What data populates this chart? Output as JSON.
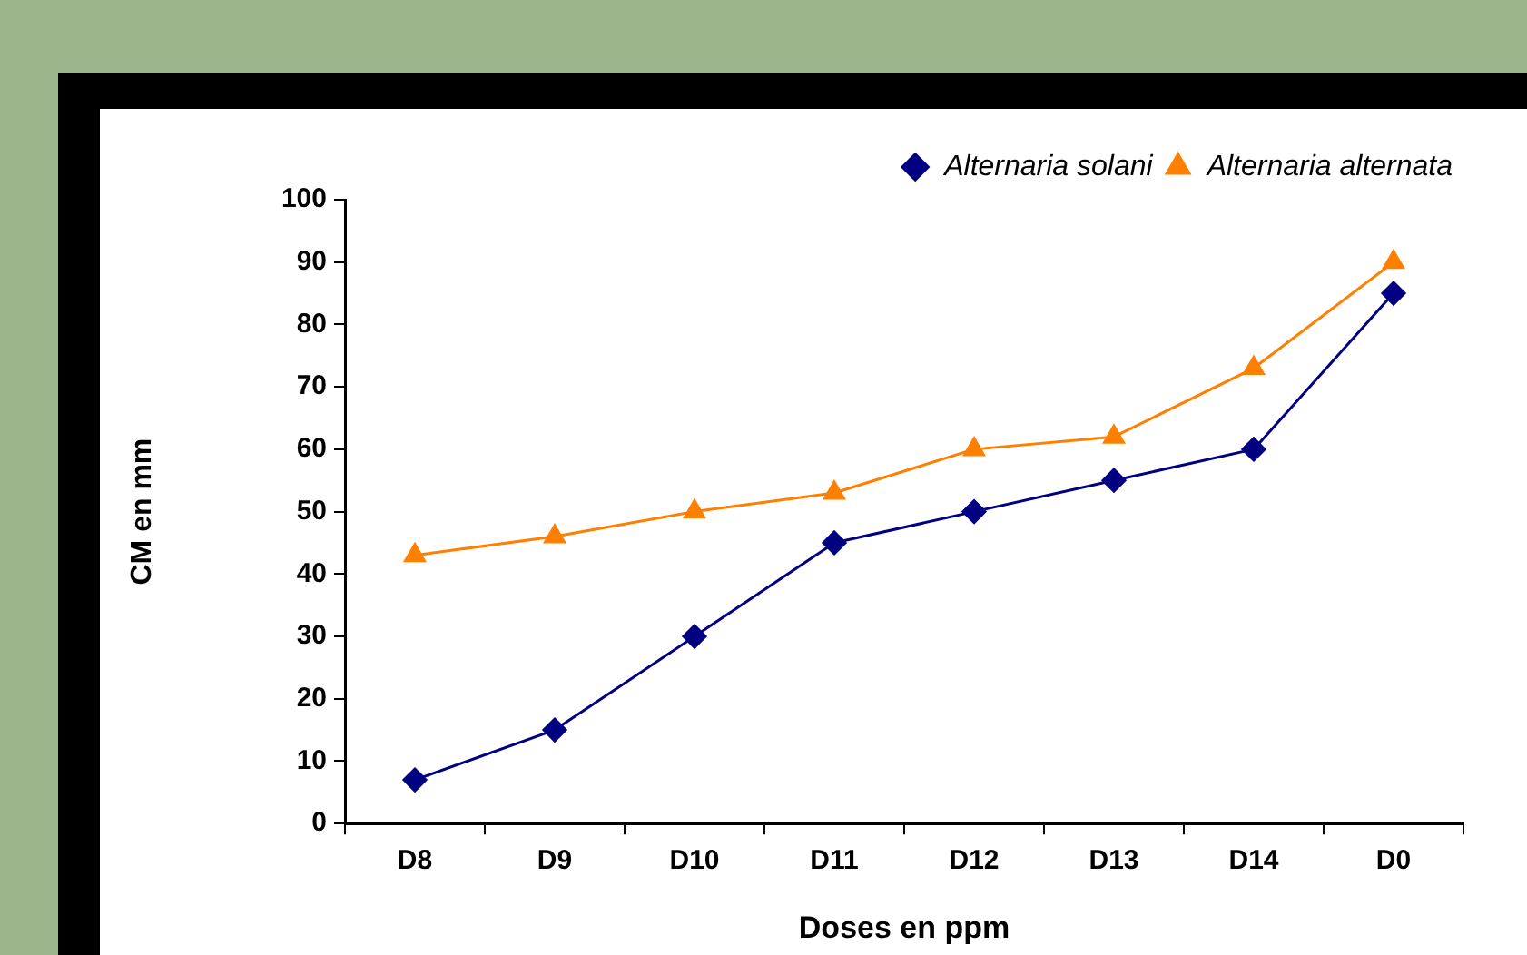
{
  "chart_data": {
    "type": "line",
    "xlabel": "Doses en ppm",
    "ylabel": "CM en mm",
    "categories": [
      "D8",
      "D9",
      "D10",
      "D11",
      "D12",
      "D13",
      "D14",
      "D0"
    ],
    "series": [
      {
        "name": "Alternaria solani",
        "color": "#000080",
        "marker": "diamond",
        "values": [
          7,
          15,
          30,
          45,
          50,
          55,
          60,
          85
        ]
      },
      {
        "name": "Alternaria alternata",
        "color": "#ff7f00",
        "marker": "triangle",
        "values": [
          43,
          46,
          50,
          53,
          60,
          62,
          73,
          90
        ]
      }
    ],
    "ylim": [
      0,
      100
    ],
    "yticks": [
      0,
      10,
      20,
      30,
      40,
      50,
      60,
      70,
      80,
      90,
      100
    ],
    "grid": false,
    "legend": "top right",
    "line_style": "solid"
  }
}
